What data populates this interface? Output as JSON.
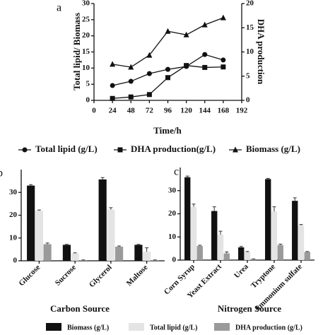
{
  "chart_data": [
    {
      "type": "line",
      "panel": "a",
      "x_label": "Time/h",
      "y_label": "Total lipid/ Biomass",
      "y2_label": "DHA production",
      "x": [
        24,
        48,
        72,
        96,
        120,
        144,
        168
      ],
      "xlim": [
        0,
        192
      ],
      "xticks": [
        0,
        24,
        48,
        72,
        96,
        120,
        144,
        168,
        192
      ],
      "ylim": [
        0,
        30
      ],
      "yticks": [
        0,
        5,
        10,
        15,
        20,
        25,
        30
      ],
      "y2lim": [
        0,
        20
      ],
      "y2ticks": [
        0,
        5,
        10,
        15,
        20
      ],
      "series": [
        {
          "name": "Total lipid (g/L)",
          "marker": "circle",
          "color": "#111111",
          "values": [
            4.6,
            5.9,
            8.3,
            9.6,
            10.5,
            14.2,
            12.5
          ]
        },
        {
          "name": "DHA production(g/L)",
          "marker": "square",
          "color": "#111111",
          "axis": "y2",
          "values": [
            0.4,
            0.7,
            1.2,
            4.7,
            7.2,
            6.8,
            6.9
          ]
        },
        {
          "name": "Biomass (g/L)",
          "marker": "triangle",
          "color": "#111111",
          "values": [
            11.2,
            10.3,
            14.0,
            21.4,
            20.3,
            23.4,
            25.6
          ]
        }
      ]
    },
    {
      "type": "bar",
      "panel": "b",
      "x_label": "Carbon Source",
      "categories": [
        "Glucose",
        "Sucrose",
        "Glycerol",
        "Maltose"
      ],
      "ylim": [
        0,
        40
      ],
      "yticks": [
        0,
        10,
        20,
        30
      ],
      "series": [
        {
          "name": "Biomass (g/L)",
          "color": "#111111",
          "values": [
            33.0,
            7.0,
            35.7,
            7.0
          ],
          "errors": [
            0.4,
            0.2,
            0.8,
            0.2
          ]
        },
        {
          "name": "Total lipid (g/L)",
          "color": "#e4e4e4",
          "values": [
            22.0,
            3.2,
            22.5,
            4.0
          ],
          "errors": [
            0.3,
            0.3,
            0.8,
            1.7
          ]
        },
        {
          "name": "DHA production (g/L)",
          "color": "#9a9a9a",
          "values": [
            7.3,
            0.3,
            6.2,
            0.3
          ],
          "errors": [
            0.5,
            0.1,
            0.3,
            0.1
          ]
        }
      ]
    },
    {
      "type": "bar",
      "panel": "c",
      "x_label": "Nitrogen Source",
      "categories": [
        "Corn Syrup",
        "Yeast Extract",
        "Urea",
        "Tryptone",
        "Ammonium sulfate"
      ],
      "ylim": [
        0,
        40
      ],
      "yticks": [
        0,
        10,
        20,
        30
      ],
      "series": [
        {
          "color": "#111111",
          "values": [
            35.8,
            21.2,
            5.5,
            35.0,
            25.6
          ],
          "errors": [
            0.5,
            1.8,
            0.4,
            0.3,
            1.3
          ]
        },
        {
          "color": "#e4e4e4",
          "values": [
            23.0,
            11.0,
            3.4,
            21.0,
            15.0
          ],
          "errors": [
            1.2,
            1.5,
            0.3,
            2.0,
            0.4
          ]
        },
        {
          "color": "#9a9a9a",
          "values": [
            6.1,
            2.9,
            0.4,
            6.5,
            3.5
          ],
          "errors": [
            0.3,
            0.6,
            0.1,
            0.4,
            0.2
          ]
        }
      ]
    }
  ]
}
